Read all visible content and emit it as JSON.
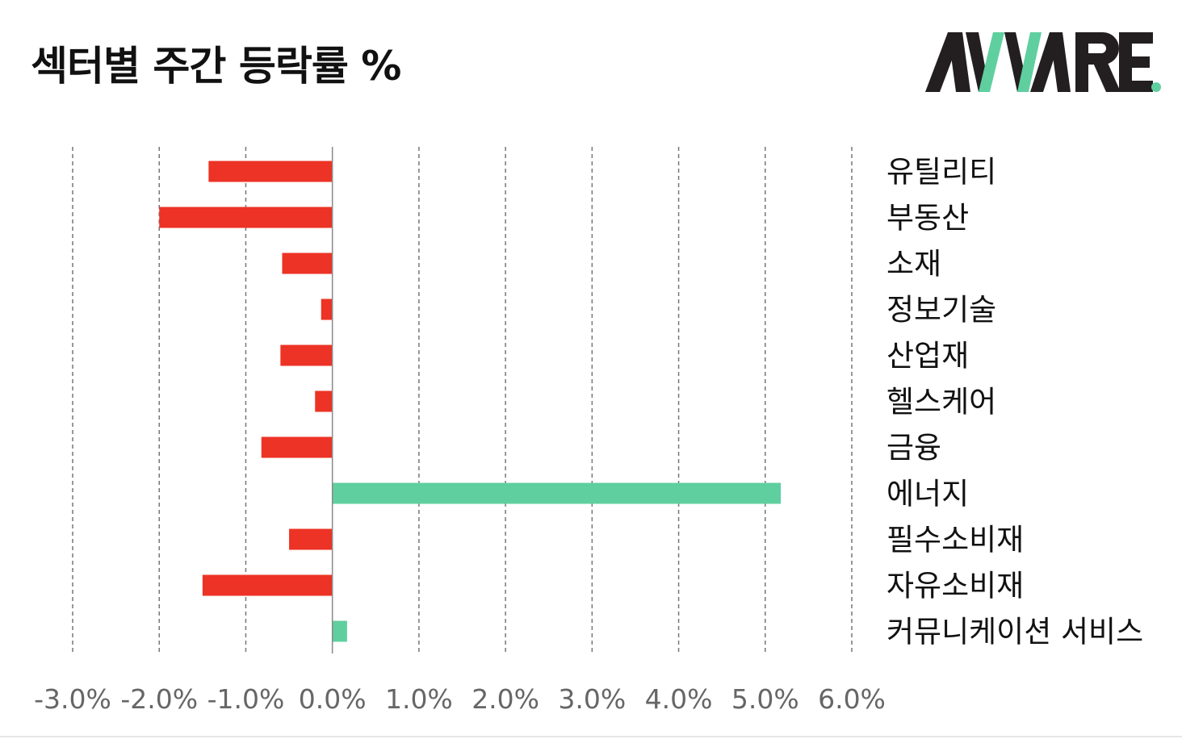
{
  "title": "섹터별 주간 등락률 %",
  "logo": {
    "text": "AWARE",
    "dark_color": "#231f20",
    "accent_color": "#5fcf9f"
  },
  "colors": {
    "negative": "#ec3325",
    "positive": "#5fcf9f",
    "grid": "#777777",
    "zero_line": "#888888"
  },
  "chart_data": {
    "type": "bar",
    "orientation": "horizontal",
    "title": "섹터별 주간 등락률 %",
    "xlabel": "",
    "ylabel": "",
    "categories": [
      "유틸리티",
      "부동산",
      "소재",
      "정보기술",
      "산업재",
      "헬스케어",
      "금융",
      "에너지",
      "필수소비재",
      "자유소비재",
      "커뮤니케이션 서비스"
    ],
    "values": [
      -1.43,
      -2.0,
      -0.58,
      -0.13,
      -0.6,
      -0.2,
      -0.82,
      5.18,
      -0.5,
      -1.5,
      0.17
    ],
    "xlim": [
      -3.0,
      6.0
    ],
    "xticks": [
      -3.0,
      -2.0,
      -1.0,
      0.0,
      1.0,
      2.0,
      3.0,
      4.0,
      5.0,
      6.0
    ],
    "xtick_labels": [
      "-3.0%",
      "-2.0%",
      "-1.0%",
      "0.0%",
      "1.0%",
      "2.0%",
      "3.0%",
      "4.0%",
      "5.0%",
      "6.0%"
    ],
    "grid": "vertical-dashed",
    "category_labels_side": "right"
  }
}
